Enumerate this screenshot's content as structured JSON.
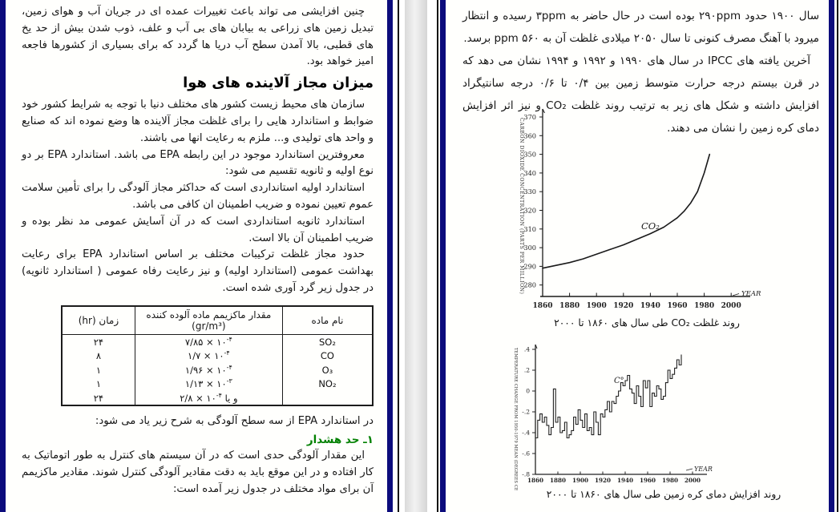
{
  "colors": {
    "border_navy": "#0c0c7c",
    "alert_green": "#008000"
  },
  "left_page": {
    "para1": "چنین افزایشی می تواند باعث تغییرات عمده ای در جریان آب و هوای زمین، تبدیل زمین های زراعی به بیابان های بی آب و علف، ذوب شدن بیش از حد یخ های قطبی، بالا آمدن سطح آب دریا ها گردد که برای بسیاری از کشورها فاجعه امیز خواهد بود.",
    "heading": "میزان مجاز آلاینده های هوا",
    "para2": "سازمان های محیط زیست کشور های مختلف دنیا با توجه به شرایط کشور خود ضوابط و استاندارد هایی را برای غلظت مجاز آلاینده ها وضع نموده اند که صنایع و واحد های تولیدی و... ملزم به رعایت انها می باشند.",
    "para3": "معروفترین استاندارد موجود در این رابطه EPA می باشد. استاندارد EPA بر دو نوع اولیه و ثانویه تقسیم می شود:",
    "para4": "استاندارد اولیه استانداردی است که حداکثر مجاز آلودگی را برای تأمین سلامت عموم تعیین نموده و ضریب اطمینان ان کافی می باشد.",
    "para5": "استاندارد ثانویه استانداردی است که در آن آسایش عمومی مد نظر بوده و ضریب اطمینان آن بالا است.",
    "para6": "حدود مجاز غلظت ترکیبات مختلف بر اساس استاندارد EPA برای رعایت بهداشت عمومی (استاندارد اولیه) و نیز رعایت رفاه عمومی ( استاندارد ثانویه) در جدول زیر گرد آوری شده است.",
    "table": {
      "headers": {
        "name": "نام ماده",
        "value": "مقدار ماکزیمم ماده آلوده کننده (gr/m³)",
        "time": "زمان (hr)"
      },
      "rows": [
        {
          "name": "SO₂",
          "value_pre": "",
          "value_base": "۷/۸۵ × ۱۰",
          "value_exp": "-۴",
          "time": "۲۴"
        },
        {
          "name": "CO",
          "value_pre": "",
          "value_base": "۱/۷ × ۱۰",
          "value_exp": "-۴",
          "time": "۸"
        },
        {
          "name": "O₃",
          "value_pre": "",
          "value_base": "۱/۹۶ × ۱۰",
          "value_exp": "-۴",
          "time": "۱"
        },
        {
          "name": "NO₂",
          "value_pre": "",
          "value_base": "۱/۱۳ × ۱۰",
          "value_exp": "-۳",
          "time": "۱"
        },
        {
          "name": "",
          "value_pre": "و یا",
          "value_base": "۲/۸ × ۱۰",
          "value_exp": "-۴",
          "time": "۲۴"
        }
      ]
    },
    "para7": "در استاندارد EPA از سه سطح آلودگی به شرح زیر یاد می شود:",
    "alert_heading": "۱ـ حد هشدار",
    "para8": "این مقدار آلودگی حدی است که در آن سیستم های کنترل به طور اتوماتیک به کار افتاده و در این موقع باید به دقت مقادیر آلودگی کنترل شوند. مقادیر ماکزیمم آن برای مواد مختلف در جدول زیر آمده است:"
  },
  "right_page": {
    "para1": "سال ۱۹۰۰ حدود ۲۹۰ppm بوده است در حال حاضر به ۳ppm رسیده و انتظار میرود با آهنگ مصرف کنونی تا سال ۲۰۵۰ میلادی غلظت آن به ۵۶۰ ppm برسد.",
    "para2": "آخرین یافته های IPCC در سال های ۱۹۹۰ و ۱۹۹۲ و ۱۹۹۴ نشان می دهد که در قرن بیستم درجه حرارت متوسط زمین بین ۰/۴ تا ۰/۶ درجه سانتیگراد افزایش داشته و شکل های زیر به ترتیب روند غلظت CO₂ و نیز اثر افزایش دمای کره زمین را نشان می دهند.",
    "caption1": "روند غلظت CO₂ طی سال های ۱۸۶۰ تا ۲۰۰۰",
    "caption2": "روند افزایش دمای کره زمین طی سال های ۱۸۶۰ تا ۲۰۰۰"
  },
  "chart_data": [
    {
      "type": "line",
      "title": "روند غلظت CO₂ طی سال های ۱۸۶۰ تا ۲۰۰۰",
      "xlabel": "YEAR",
      "ylabel": "CARBON DIOXIDE CONCENTRATION (PARTS PER MILLION)",
      "series_label": "CO₂",
      "xlim": [
        1860,
        2000
      ],
      "ylim": [
        275,
        375
      ],
      "xticks": [
        1860,
        1880,
        1900,
        1920,
        1940,
        1960,
        1980,
        2000
      ],
      "yticks": [
        280,
        290,
        300,
        310,
        320,
        330,
        340,
        350,
        360,
        370
      ],
      "grid": false,
      "x": [
        1860,
        1870,
        1880,
        1890,
        1900,
        1910,
        1920,
        1930,
        1940,
        1950,
        1955,
        1960,
        1965,
        1970,
        1975,
        1980,
        1984
      ],
      "y": [
        289,
        290.5,
        292,
        294,
        296.5,
        299,
        301.5,
        304.5,
        307.5,
        311,
        313.5,
        316,
        319.5,
        324,
        330,
        340,
        350
      ]
    },
    {
      "type": "line",
      "step": true,
      "title": "روند افزایش دمای کره زمین طی سال های ۱۸۶۰ تا ۲۰۰۰",
      "xlabel": "YEAR",
      "ylabel": "TEMPERATURE CHANGE FROM 1950-1979 MEAN (DEGREES CELSIUS)",
      "annotation": "C°",
      "xlim": [
        1855,
        2000
      ],
      "ylim": [
        -0.8,
        0.45
      ],
      "xticks": [
        1860,
        1880,
        1900,
        1920,
        1940,
        1960,
        1980,
        2000
      ],
      "yticks": [
        0.4,
        0.2,
        0,
        -0.2,
        -0.4,
        -0.6,
        -0.8
      ],
      "ytick_labels": [
        ".4",
        ".2",
        "0",
        "-.2",
        "-.4",
        "-.6",
        "-.8"
      ],
      "grid": false,
      "x_start": 1860,
      "x_step": 2,
      "y": [
        -0.45,
        -0.28,
        -0.22,
        -0.3,
        -0.25,
        -0.33,
        -0.42,
        -0.35,
        0.02,
        -0.3,
        -0.25,
        -0.4,
        -0.38,
        -0.3,
        -0.45,
        -0.42,
        -0.38,
        -0.25,
        -0.32,
        -0.18,
        -0.28,
        -0.35,
        -0.22,
        -0.38,
        -0.35,
        -0.42,
        -0.2,
        -0.3,
        -0.42,
        -0.22,
        -0.25,
        -0.18,
        -0.1,
        -0.2,
        -0.1,
        -0.12,
        -0.05,
        0.0,
        0.08,
        0.05,
        0.1,
        0.15,
        0.02,
        -0.02,
        -0.12,
        0.05,
        -0.05,
        -0.15,
        0.1,
        0.03,
        0.1,
        -0.15,
        -0.02,
        -0.05,
        0.05,
        0.02,
        -0.08,
        -0.05,
        0.08,
        0.2,
        0.12,
        0.16,
        0.22,
        0.3,
        0.25,
        0.35
      ]
    }
  ]
}
